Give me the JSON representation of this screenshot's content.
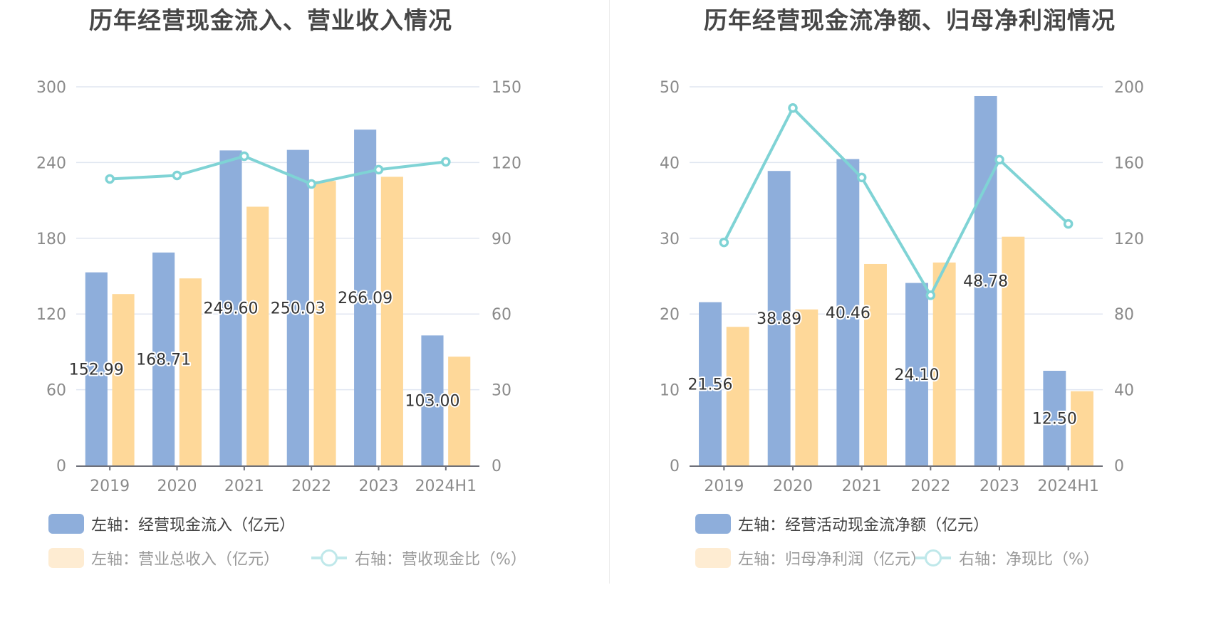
{
  "colors": {
    "bar_primary": "#8eaedb",
    "bar_secondary": "#fed899",
    "line": "#7fd3d5",
    "grid": "#e0e6f1",
    "axis": "#6e7079",
    "legend_dim_swatch": "#feecd2"
  },
  "chart_data": [
    {
      "type": "bar",
      "title": "历年经营现金流入、营业收入情况",
      "categories": [
        "2019",
        "2020",
        "2021",
        "2022",
        "2023",
        "2024H1"
      ],
      "left_axis": {
        "ylim": [
          0,
          300
        ],
        "ticks": [
          "0",
          "60",
          "120",
          "180",
          "240",
          "300"
        ]
      },
      "right_axis": {
        "ylim": [
          0,
          150
        ],
        "ticks": [
          "0",
          "30",
          "60",
          "90",
          "120",
          "150"
        ]
      },
      "grid": true,
      "legend_position": "bottom-left",
      "series": [
        {
          "name": "左轴：经营现金流入（亿元）",
          "type": "bar",
          "axis": "left",
          "values": [
            152.99,
            168.71,
            249.6,
            250.03,
            266.09,
            103.0
          ],
          "labels": [
            "152.99",
            "168.71",
            "249.60",
            "250.03",
            "266.09",
            "103.00"
          ]
        },
        {
          "name": "左轴：营业总收入（亿元）",
          "type": "bar",
          "axis": "left",
          "values": [
            135.8,
            148.2,
            205.0,
            225.4,
            228.7,
            86.2
          ]
        },
        {
          "name": "右轴：营收现金比（%）",
          "type": "line",
          "axis": "right",
          "values": [
            113.5,
            114.9,
            122.5,
            111.5,
            117.2,
            120.3
          ]
        }
      ]
    },
    {
      "type": "bar",
      "title": "历年经营现金流净额、归母净利润情况",
      "categories": [
        "2019",
        "2020",
        "2021",
        "2022",
        "2023",
        "2024H1"
      ],
      "left_axis": {
        "ylim": [
          0,
          50
        ],
        "ticks": [
          "0",
          "10",
          "20",
          "30",
          "40",
          "50"
        ]
      },
      "right_axis": {
        "ylim": [
          0,
          200
        ],
        "ticks": [
          "0",
          "40",
          "80",
          "120",
          "160",
          "200"
        ]
      },
      "grid": true,
      "legend_position": "bottom-left",
      "series": [
        {
          "name": "左轴：经营活动现金流净额（亿元）",
          "type": "bar",
          "axis": "left",
          "values": [
            21.56,
            38.89,
            40.46,
            24.1,
            48.78,
            12.5
          ],
          "labels": [
            "21.56",
            "38.89",
            "40.46",
            "24.10",
            "48.78",
            "12.50"
          ]
        },
        {
          "name": "左轴：归母净利润（亿元）",
          "type": "bar",
          "axis": "left",
          "values": [
            18.3,
            20.6,
            26.6,
            26.8,
            30.2,
            9.8
          ]
        },
        {
          "name": "右轴：净现比（%）",
          "type": "line",
          "axis": "right",
          "values": [
            117.8,
            188.8,
            152.1,
            89.9,
            161.5,
            127.6
          ]
        }
      ]
    }
  ]
}
